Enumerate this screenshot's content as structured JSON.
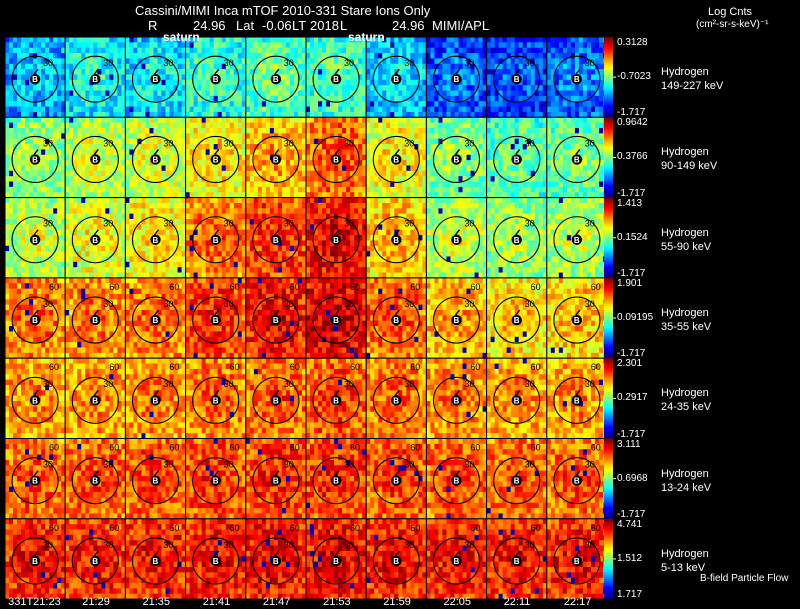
{
  "header": {
    "title": "Cassini/MIMI Inca mTOF  2010-331    Stare    Ions Only",
    "r_label": "R",
    "r_value": "24.96",
    "lat_label": "Lat",
    "lat_value": "-0.06",
    "lt_label": "LT",
    "lt_value": "2018",
    "l_label": "L",
    "l_value": "24.96",
    "org": "MIMI/APL",
    "saturn_label": "saturn",
    "units_line1": "Log Cnts",
    "units_line2": "(cm²-sr-s-keV)⁻¹",
    "footer_note": "B-field  Particle Flow"
  },
  "chart_data": {
    "type": "heatmap",
    "title": "Cassini/MIMI Inca mTOF  2010-331    Stare    Ions Only",
    "time_labels": [
      "331T21:23",
      "21:29",
      "21:35",
      "21:41",
      "21:47",
      "21:53",
      "21:59",
      "22:05",
      "22:11",
      "22:17"
    ],
    "ring_labels": [
      "30",
      "60"
    ],
    "rows": [
      {
        "species": "Hydrogen",
        "energy": "149-227 keV",
        "max": "0.3128",
        "mid": "-0.7023",
        "min": "-1.717",
        "levels": [
          0.3,
          0.38,
          0.36,
          0.42,
          0.46,
          0.44,
          0.33,
          0.22,
          0.2,
          0.24
        ]
      },
      {
        "species": "Hydrogen",
        "energy": "90-149 keV",
        "max": "0.9642",
        "mid": "0.3766",
        "min": "-1.717",
        "levels": [
          0.52,
          0.56,
          0.58,
          0.64,
          0.7,
          0.78,
          0.62,
          0.5,
          0.46,
          0.48
        ]
      },
      {
        "species": "Hydrogen",
        "energy": "55-90 keV",
        "max": "1.413",
        "mid": "0.1524",
        "min": "-1.717",
        "levels": [
          0.56,
          0.6,
          0.64,
          0.76,
          0.82,
          0.88,
          0.68,
          0.56,
          0.52,
          0.54
        ]
      },
      {
        "species": "Hydrogen",
        "energy": "35-55 keV",
        "max": "1.901",
        "mid": "0.09195",
        "min": "-1.717",
        "levels": [
          0.76,
          0.74,
          0.76,
          0.82,
          0.86,
          0.9,
          0.78,
          0.7,
          0.66,
          0.68
        ]
      },
      {
        "species": "Hydrogen",
        "energy": "24-35 keV",
        "max": "2.301",
        "mid": "0.2917",
        "min": "-1.717",
        "levels": [
          0.72,
          0.72,
          0.74,
          0.76,
          0.78,
          0.8,
          0.76,
          0.74,
          0.72,
          0.72
        ]
      },
      {
        "species": "Hydrogen",
        "energy": "13-24 keV",
        "max": "3.111",
        "mid": "0.6968",
        "min": "-1.717",
        "levels": [
          0.78,
          0.78,
          0.8,
          0.81,
          0.82,
          0.82,
          0.8,
          0.79,
          0.78,
          0.78
        ]
      },
      {
        "species": "Hydrogen",
        "energy": "5-13 keV",
        "max": "4.741",
        "mid": "1.512",
        "min": "1.717",
        "levels": [
          0.85,
          0.84,
          0.85,
          0.86,
          0.87,
          0.87,
          0.86,
          0.85,
          0.85,
          0.85
        ]
      }
    ]
  }
}
